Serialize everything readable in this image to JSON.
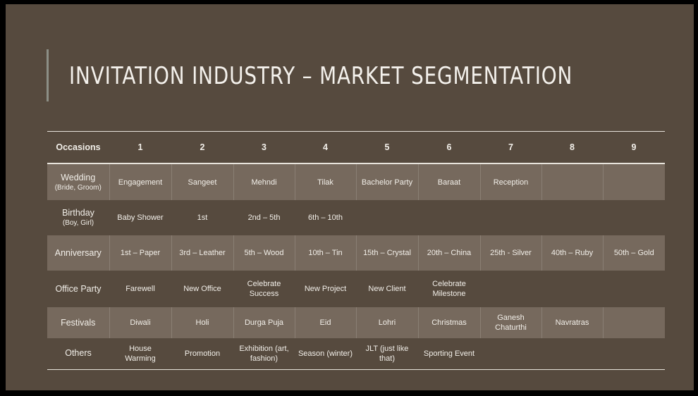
{
  "slide": {
    "title": "INVITATION INDUSTRY – MARKET SEGMENTATION"
  },
  "table": {
    "header": [
      "Occasions",
      "1",
      "2",
      "3",
      "4",
      "5",
      "6",
      "7",
      "8",
      "9"
    ],
    "rows": [
      {
        "occasion": "Wedding",
        "sub": "(Bride, Groom)",
        "shaded": true,
        "cells": [
          "Engagement",
          "Sangeet",
          "Mehndi",
          "Tilak",
          "Bachelor Party",
          "Baraat",
          "Reception",
          "",
          ""
        ]
      },
      {
        "occasion": "Birthday",
        "sub": "(Boy, Girl)",
        "shaded": false,
        "cells": [
          "Baby Shower",
          "1st",
          "2nd – 5th",
          "6th – 10th",
          "",
          "",
          "",
          "",
          ""
        ]
      },
      {
        "occasion": "Anniversary",
        "sub": "",
        "shaded": true,
        "cells": [
          "1st – Paper",
          "3rd – Leather",
          "5th – Wood",
          "10th – Tin",
          "15th – Crystal",
          "20th – China",
          "25th - Silver",
          "40th – Ruby",
          "50th – Gold"
        ]
      },
      {
        "occasion": "Office Party",
        "sub": "",
        "shaded": false,
        "cells": [
          "Farewell",
          "New Office",
          "Celebrate Success",
          "New Project",
          "New Client",
          "Celebrate Milestone",
          "",
          "",
          ""
        ]
      },
      {
        "occasion": "Festivals",
        "sub": "",
        "shaded": true,
        "cells": [
          "Diwali",
          "Holi",
          "Durga Puja",
          "Eid",
          "Lohri",
          "Christmas",
          "Ganesh Chaturthi",
          "Navratras",
          ""
        ]
      },
      {
        "occasion": "Others",
        "sub": "",
        "shaded": false,
        "cells": [
          "House Warming",
          "Promotion",
          "Exhibition (art, fashion)",
          "Season (winter)",
          "JLT (just like that)",
          "Sporting Event",
          "",
          "",
          ""
        ]
      }
    ]
  },
  "colors": {
    "background": "#564a3e",
    "shaded_row": "#76695d",
    "text": "#f2efe9",
    "accent_bar": "#8c8f86"
  }
}
